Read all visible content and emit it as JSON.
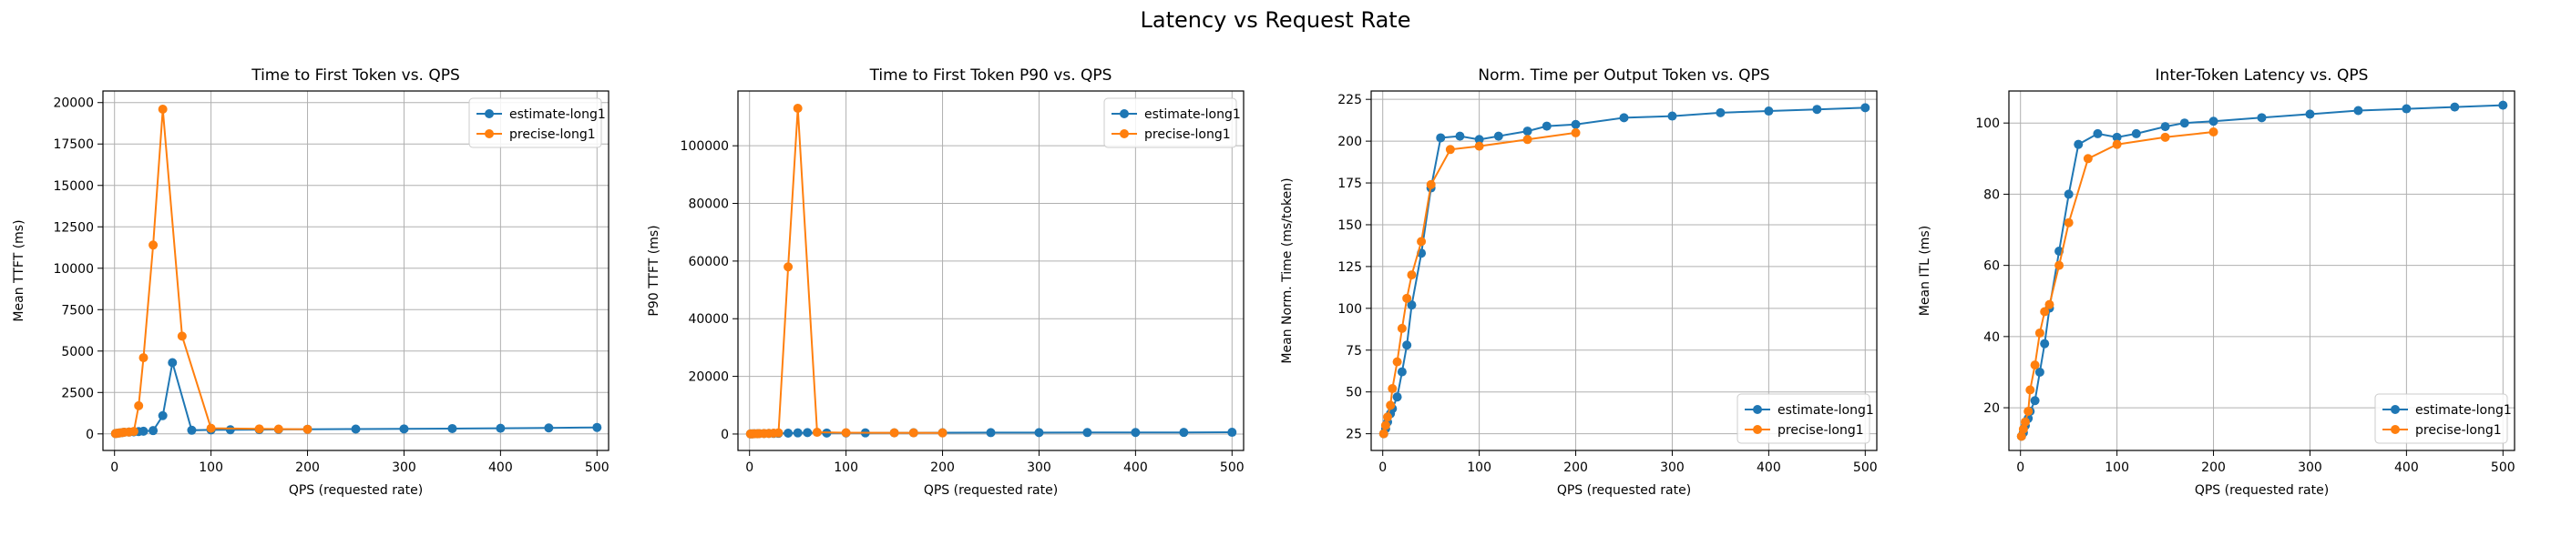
{
  "suptitle": "Latency vs Request Rate",
  "colors": {
    "estimate": "#1f77b4",
    "precise": "#ff7f0e"
  },
  "chart_data": [
    {
      "type": "line",
      "title": "Time to First Token vs. QPS",
      "xlabel": "QPS (requested rate)",
      "ylabel": "Mean TTFT (ms)",
      "xlim": [
        -12,
        512
      ],
      "ylim": [
        -1000,
        20700
      ],
      "xticks": [
        0,
        100,
        200,
        300,
        400,
        500
      ],
      "yticks": [
        0,
        2500,
        5000,
        7500,
        10000,
        12500,
        15000,
        17500,
        20000
      ],
      "legend": "upper right",
      "grid": true,
      "series": [
        {
          "name": "estimate-long1",
          "x": [
            1,
            3,
            5,
            8,
            10,
            15,
            20,
            25,
            30,
            40,
            50,
            60,
            80,
            100,
            120,
            150,
            170,
            200,
            250,
            300,
            350,
            400,
            450,
            500
          ],
          "y": [
            20,
            40,
            60,
            80,
            100,
            110,
            120,
            140,
            160,
            200,
            1100,
            4300,
            220,
            240,
            250,
            260,
            270,
            280,
            290,
            300,
            320,
            340,
            360,
            390
          ]
        },
        {
          "name": "precise-long1",
          "x": [
            1,
            3,
            5,
            8,
            10,
            15,
            20,
            25,
            30,
            40,
            50,
            70,
            100,
            150,
            170,
            200
          ],
          "y": [
            20,
            40,
            60,
            80,
            100,
            110,
            150,
            1700,
            4600,
            11400,
            19600,
            5900,
            340,
            300,
            290,
            280
          ]
        }
      ]
    },
    {
      "type": "line",
      "title": "Time to First Token P90 vs. QPS",
      "xlabel": "QPS (requested rate)",
      "ylabel": "P90 TTFT (ms)",
      "xlim": [
        -12,
        512
      ],
      "ylim": [
        -5700,
        119000
      ],
      "xticks": [
        0,
        100,
        200,
        300,
        400,
        500
      ],
      "yticks": [
        0,
        20000,
        40000,
        60000,
        80000,
        100000
      ],
      "legend": "upper right",
      "grid": true,
      "series": [
        {
          "name": "estimate-long1",
          "x": [
            1,
            3,
            5,
            8,
            10,
            15,
            20,
            25,
            30,
            40,
            50,
            60,
            80,
            100,
            120,
            150,
            170,
            200,
            250,
            300,
            350,
            400,
            450,
            500
          ],
          "y": [
            50,
            80,
            100,
            120,
            150,
            180,
            200,
            220,
            250,
            300,
            400,
            500,
            350,
            380,
            400,
            420,
            440,
            460,
            480,
            500,
            520,
            540,
            560,
            600
          ]
        },
        {
          "name": "precise-long1",
          "x": [
            1,
            3,
            5,
            8,
            10,
            15,
            20,
            25,
            30,
            40,
            50,
            70,
            100,
            150,
            170,
            200
          ],
          "y": [
            50,
            80,
            100,
            120,
            150,
            180,
            220,
            300,
            400,
            58000,
            113000,
            600,
            450,
            420,
            410,
            400
          ]
        }
      ]
    },
    {
      "type": "line",
      "title": "Norm. Time per Output Token vs. QPS",
      "xlabel": "QPS (requested rate)",
      "ylabel": "Mean Norm. Time (ms/token)",
      "xlim": [
        -12,
        512
      ],
      "ylim": [
        15,
        230
      ],
      "xticks": [
        0,
        100,
        200,
        300,
        400,
        500
      ],
      "yticks": [
        25,
        50,
        75,
        100,
        125,
        150,
        175,
        200,
        225
      ],
      "legend": "lower right",
      "grid": true,
      "series": [
        {
          "name": "estimate-long1",
          "x": [
            1,
            3,
            5,
            8,
            10,
            15,
            20,
            25,
            30,
            40,
            50,
            60,
            80,
            100,
            120,
            150,
            170,
            200,
            250,
            300,
            350,
            400,
            450,
            500
          ],
          "y": [
            25,
            28,
            32,
            37,
            40,
            47,
            62,
            78,
            102,
            133,
            172,
            202,
            203,
            201,
            203,
            206,
            209,
            210,
            214,
            215,
            217,
            218,
            219,
            220
          ]
        },
        {
          "name": "precise-long1",
          "x": [
            1,
            3,
            5,
            8,
            10,
            15,
            20,
            25,
            30,
            40,
            50,
            70,
            100,
            150,
            200
          ],
          "y": [
            25,
            30,
            35,
            42,
            52,
            68,
            88,
            106,
            120,
            140,
            174,
            195,
            197,
            201,
            205
          ]
        }
      ]
    },
    {
      "type": "line",
      "title": "Inter-Token Latency vs. QPS",
      "xlabel": "QPS (requested rate)",
      "ylabel": "Mean ITL (ms)",
      "xlim": [
        -12,
        512
      ],
      "ylim": [
        8,
        109
      ],
      "xticks": [
        0,
        100,
        200,
        300,
        400,
        500
      ],
      "yticks": [
        20,
        40,
        60,
        80,
        100
      ],
      "legend": "lower right",
      "grid": true,
      "series": [
        {
          "name": "estimate-long1",
          "x": [
            1,
            3,
            5,
            8,
            10,
            15,
            20,
            25,
            30,
            40,
            50,
            60,
            80,
            100,
            120,
            150,
            170,
            200,
            250,
            300,
            350,
            400,
            450,
            500
          ],
          "y": [
            12,
            13,
            15,
            17,
            19,
            22,
            30,
            38,
            48,
            64,
            80,
            94,
            97,
            96,
            97,
            99,
            100,
            100.5,
            101.5,
            102.5,
            103.5,
            104,
            104.5,
            105
          ]
        },
        {
          "name": "precise-long1",
          "x": [
            1,
            3,
            5,
            8,
            10,
            15,
            20,
            25,
            30,
            40,
            50,
            70,
            100,
            150,
            200
          ],
          "y": [
            12,
            14,
            16,
            19,
            25,
            32,
            41,
            47,
            49,
            60,
            72,
            90,
            94,
            96,
            97.5
          ]
        }
      ]
    }
  ]
}
